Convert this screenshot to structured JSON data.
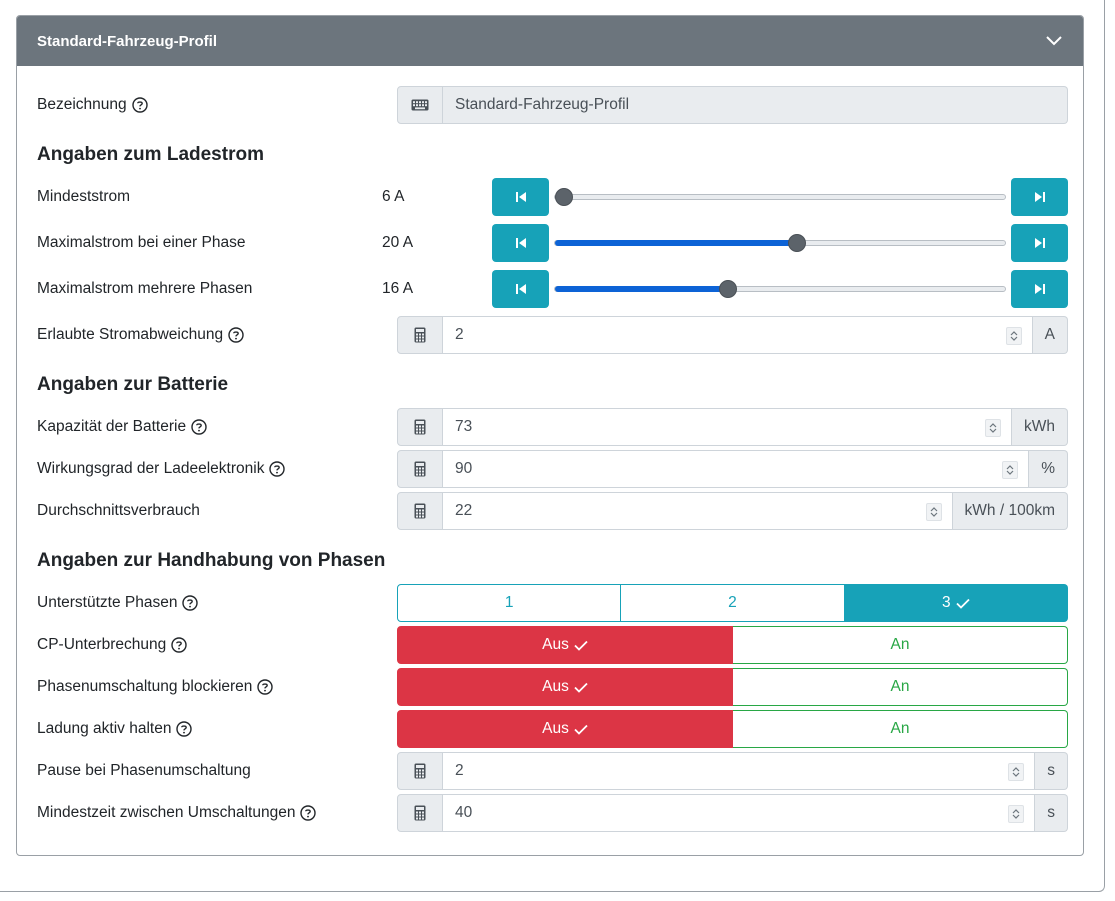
{
  "card": {
    "title": "Standard-Fahrzeug-Profil"
  },
  "fields": {
    "name": {
      "label": "Bezeichnung",
      "value": "Standard-Fahrzeug-Profil"
    }
  },
  "sections": {
    "charging": "Angaben zum Ladestrom",
    "battery": "Angaben zur Batterie",
    "phases": "Angaben zur Handhabung von Phasen"
  },
  "charging": {
    "min_current": {
      "label": "Mindeststrom",
      "display": "6 A",
      "value": 6,
      "min": 6,
      "max": 32
    },
    "max_current_one_phase": {
      "label": "Maximalstrom bei einer Phase",
      "display": "20 A",
      "value": 20,
      "min": 6,
      "max": 32
    },
    "max_current_multi_phase": {
      "label": "Maximalstrom mehrere Phasen",
      "display": "16 A",
      "value": 16,
      "min": 6,
      "max": 32
    },
    "tolerance": {
      "label": "Erlaubte Stromabweichung",
      "value": "2",
      "unit": "A"
    }
  },
  "battery": {
    "capacity": {
      "label": "Kapazität der Batterie",
      "value": "73",
      "unit": "kWh"
    },
    "efficiency": {
      "label": "Wirkungsgrad der Ladeelektronik",
      "value": "90",
      "unit": "%"
    },
    "consumption": {
      "label": "Durchschnittsverbrauch",
      "value": "22",
      "unit": "kWh / 100km"
    }
  },
  "phases": {
    "supported": {
      "label": "Unterstützte Phasen",
      "options": [
        "1",
        "2",
        "3"
      ],
      "selected": "3"
    },
    "cp_interrupt": {
      "label": "CP-Unterbrechung",
      "off": "Aus",
      "on": "An",
      "selected": "Aus"
    },
    "block_switch": {
      "label": "Phasenumschaltung blockieren",
      "off": "Aus",
      "on": "An",
      "selected": "Aus"
    },
    "keep_active": {
      "label": "Ladung aktiv halten",
      "off": "Aus",
      "on": "An",
      "selected": "Aus"
    },
    "pause": {
      "label": "Pause bei Phasenumschaltung",
      "value": "2",
      "unit": "s"
    },
    "min_time": {
      "label": "Mindestzeit zwischen Umschaltungen",
      "value": "40",
      "unit": "s"
    }
  },
  "colors": {
    "header_bg": "#6c757d",
    "info": "#17a2b8",
    "danger": "#dc3545",
    "success": "#28a745",
    "slider_fill": "#0d63d6"
  }
}
